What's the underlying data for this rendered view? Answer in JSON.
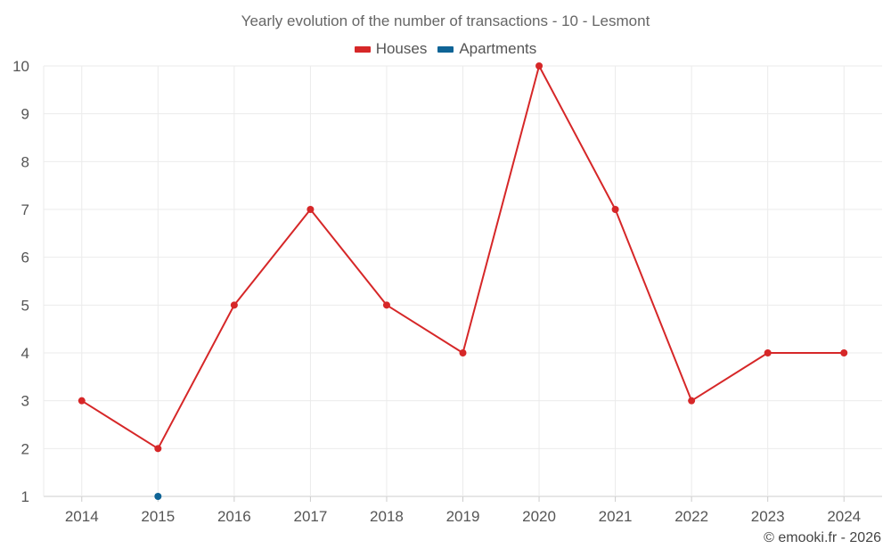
{
  "chart_data": {
    "type": "line",
    "title": "Yearly evolution of the number of transactions - 10 - Lesmont",
    "categories": [
      "2014",
      "2015",
      "2016",
      "2017",
      "2018",
      "2019",
      "2020",
      "2021",
      "2022",
      "2023",
      "2024"
    ],
    "series": [
      {
        "name": "Houses",
        "color": "#d62728",
        "values": [
          3,
          2,
          5,
          7,
          5,
          4,
          10,
          7,
          3,
          4,
          4
        ]
      },
      {
        "name": "Apartments",
        "color": "#0f6496",
        "values": [
          null,
          1,
          null,
          null,
          null,
          null,
          null,
          null,
          null,
          null,
          null
        ]
      }
    ],
    "xlabel": "",
    "ylabel": "",
    "ylim": [
      1,
      10
    ],
    "yticks": [
      1,
      2,
      3,
      4,
      5,
      6,
      7,
      8,
      9,
      10
    ],
    "grid": true,
    "legend_position": "top-center"
  },
  "footer": {
    "credit": "© emooki.fr - 2026"
  }
}
